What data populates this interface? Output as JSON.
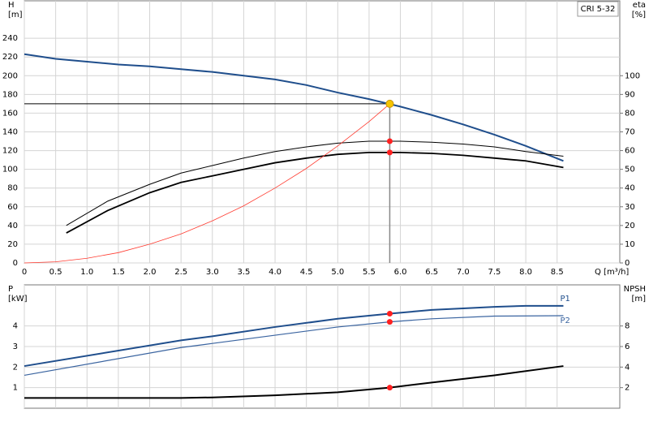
{
  "chart_data": [
    {
      "type": "line",
      "label": "CRI 5-32",
      "ylabel": [
        "H",
        "[m]"
      ],
      "y2label": [
        "eta",
        "[%]"
      ],
      "xlabel": "Q [m³/h]",
      "xlim": [
        0,
        9.5
      ],
      "xticks": [
        0,
        0.5,
        {
          "value": 1,
          "label": "1.0"
        },
        1.5,
        {
          "value": 2,
          "label": "2.0"
        },
        2.5,
        {
          "value": 3,
          "label": "3.0"
        },
        3.5,
        {
          "value": 4,
          "label": "4.0"
        },
        4.5,
        {
          "value": 5,
          "label": "5.0"
        },
        5.5,
        {
          "value": 6,
          "label": "6.0"
        },
        6.5,
        {
          "value": 7,
          "label": "7.0"
        },
        7.5,
        {
          "value": 8,
          "label": "8.0"
        },
        8.5
      ],
      "ylim": [
        0,
        280
      ],
      "yticks": [
        0,
        20,
        40,
        60,
        80,
        100,
        120,
        140,
        160,
        180,
        200,
        220,
        240
      ],
      "y2lim": [
        0,
        140
      ],
      "y2ticks": [
        0,
        10,
        20,
        30,
        40,
        50,
        60,
        70,
        80,
        90,
        100
      ],
      "grid": true,
      "series": [
        {
          "color": "#1f4e8c",
          "width": 2,
          "x": [
            0,
            0.5,
            1,
            1.5,
            2,
            2.5,
            3,
            3.5,
            4,
            4.5,
            5,
            5.5,
            6,
            6.5,
            7,
            7.5,
            8,
            8.6
          ],
          "values": [
            223,
            218,
            215,
            212,
            210,
            207,
            204,
            200,
            196,
            190,
            182,
            175,
            167,
            158,
            148,
            137,
            125,
            109
          ]
        },
        {
          "color": "#000000",
          "width": 1,
          "axis": "y2",
          "x": [
            0.67,
            1.33,
            2,
            2.5,
            3,
            3.5,
            4,
            4.5,
            5,
            5.5,
            6,
            6.5,
            7,
            7.5,
            8,
            8.6
          ],
          "values": [
            20,
            33,
            42,
            48,
            52,
            56,
            59.5,
            62,
            64,
            65,
            65,
            64.5,
            63.5,
            62,
            59.5,
            57
          ]
        },
        {
          "color": "#000000",
          "width": 1.8,
          "axis": "y2",
          "x": [
            0.67,
            1.33,
            2,
            2.5,
            3,
            3.5,
            4,
            4.5,
            5,
            5.5,
            6,
            6.5,
            7,
            7.5,
            8,
            8.6
          ],
          "values": [
            16,
            28,
            37.5,
            43,
            46.5,
            50,
            53.5,
            56,
            58,
            59,
            59,
            58.5,
            57.5,
            56,
            54.5,
            51
          ]
        },
        {
          "color": "#ff3b30",
          "width": 0.8,
          "x": [
            0,
            0.5,
            1,
            1.5,
            2,
            2.5,
            3,
            3.5,
            4,
            4.5,
            5,
            5.5,
            5.83
          ],
          "values": [
            0,
            1.2,
            5,
            11,
            20,
            31,
            45,
            61,
            80,
            101,
            125,
            151,
            170
          ]
        }
      ],
      "points": [
        {
          "color": "#ff2020",
          "axis": "y2",
          "x": 5.83,
          "y": 65
        },
        {
          "color": "#ff2020",
          "axis": "y2",
          "x": 5.83,
          "y": 59
        }
      ],
      "duty_point": {
        "x": 5.83,
        "y": 170,
        "color": "#f5c400"
      }
    },
    {
      "type": "line",
      "ylabel": [
        "P",
        "[kW]"
      ],
      "y2label": [
        "NPSH",
        "[m]"
      ],
      "xlim": [
        0,
        9.5
      ],
      "ylim": [
        0,
        6
      ],
      "yticks": [
        1,
        2,
        3,
        4
      ],
      "y2lim": [
        0,
        12
      ],
      "y2ticks": [
        2,
        4,
        6,
        8
      ],
      "grid": true,
      "series": [
        {
          "name": "P1",
          "color": "#1f4e8c",
          "width": 2,
          "x": [
            0,
            2.5,
            3,
            4,
            5,
            5.83,
            6.5,
            7.5,
            8,
            8.6
          ],
          "values": [
            2.05,
            3.3,
            3.5,
            3.95,
            4.35,
            4.6,
            4.78,
            4.93,
            4.98,
            4.98
          ]
        },
        {
          "name": "P2",
          "color": "#3a64a0",
          "width": 1.2,
          "x": [
            0,
            2.5,
            3,
            4,
            5,
            5.83,
            6.5,
            7.5,
            8.6
          ],
          "values": [
            1.6,
            2.95,
            3.15,
            3.55,
            3.95,
            4.2,
            4.35,
            4.48,
            4.5
          ]
        },
        {
          "color": "#000000",
          "width": 2,
          "axis": "y2",
          "x": [
            0,
            2.5,
            3,
            4,
            5,
            5.83,
            6.5,
            7.5,
            8.6
          ],
          "values": [
            1,
            1,
            1.05,
            1.25,
            1.55,
            2,
            2.5,
            3.2,
            4.1
          ]
        }
      ],
      "points": [
        {
          "color": "#ff2020",
          "x": 5.83,
          "y": 4.6
        },
        {
          "color": "#ff2020",
          "x": 5.83,
          "y": 4.2
        },
        {
          "color": "#ff2020",
          "axis": "y2",
          "x": 5.83,
          "y": 2
        }
      ]
    }
  ]
}
